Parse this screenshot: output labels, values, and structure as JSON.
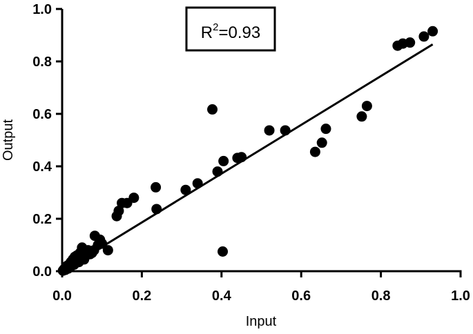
{
  "chart_data": {
    "type": "scatter",
    "xlabel": "Input",
    "ylabel": "Output",
    "xlim": [
      0,
      1.0
    ],
    "ylim": [
      0,
      1.0
    ],
    "xticks": [
      "0.0",
      "0.2",
      "0.4",
      "0.6",
      "0.8",
      "1.0"
    ],
    "yticks": [
      "0.0",
      "0.2",
      "0.4",
      "0.6",
      "0.8",
      "1.0"
    ],
    "annotation": {
      "base": "R",
      "sup": "2",
      "rest": "=0.93"
    },
    "trendline": {
      "x": [
        0.0,
        0.93
      ],
      "y": [
        0.0,
        0.865
      ]
    },
    "grid": false,
    "point_color": "#000000",
    "points": [
      [
        0.002,
        0.002
      ],
      [
        0.005,
        0.008
      ],
      [
        0.008,
        0.005
      ],
      [
        0.01,
        0.012
      ],
      [
        0.012,
        0.02
      ],
      [
        0.015,
        0.01
      ],
      [
        0.017,
        0.025
      ],
      [
        0.02,
        0.015
      ],
      [
        0.022,
        0.035
      ],
      [
        0.025,
        0.03
      ],
      [
        0.027,
        0.045
      ],
      [
        0.03,
        0.025
      ],
      [
        0.032,
        0.055
      ],
      [
        0.035,
        0.04
      ],
      [
        0.037,
        0.06
      ],
      [
        0.04,
        0.05
      ],
      [
        0.042,
        0.035
      ],
      [
        0.045,
        0.07
      ],
      [
        0.048,
        0.055
      ],
      [
        0.05,
        0.09
      ],
      [
        0.052,
        0.065
      ],
      [
        0.055,
        0.045
      ],
      [
        0.058,
        0.075
      ],
      [
        0.06,
        0.06
      ],
      [
        0.065,
        0.08
      ],
      [
        0.07,
        0.065
      ],
      [
        0.075,
        0.07
      ],
      [
        0.08,
        0.08
      ],
      [
        0.082,
        0.135
      ],
      [
        0.09,
        0.1
      ],
      [
        0.095,
        0.12
      ],
      [
        0.1,
        0.105
      ],
      [
        0.115,
        0.08
      ],
      [
        0.137,
        0.21
      ],
      [
        0.142,
        0.23
      ],
      [
        0.15,
        0.26
      ],
      [
        0.163,
        0.26
      ],
      [
        0.18,
        0.28
      ],
      [
        0.235,
        0.32
      ],
      [
        0.237,
        0.237
      ],
      [
        0.31,
        0.31
      ],
      [
        0.34,
        0.335
      ],
      [
        0.377,
        0.617
      ],
      [
        0.39,
        0.38
      ],
      [
        0.403,
        0.075
      ],
      [
        0.405,
        0.42
      ],
      [
        0.44,
        0.432
      ],
      [
        0.45,
        0.435
      ],
      [
        0.52,
        0.537
      ],
      [
        0.56,
        0.537
      ],
      [
        0.635,
        0.455
      ],
      [
        0.652,
        0.49
      ],
      [
        0.662,
        0.543
      ],
      [
        0.752,
        0.59
      ],
      [
        0.765,
        0.63
      ],
      [
        0.842,
        0.86
      ],
      [
        0.855,
        0.868
      ],
      [
        0.873,
        0.872
      ],
      [
        0.908,
        0.895
      ],
      [
        0.93,
        0.915
      ]
    ]
  }
}
